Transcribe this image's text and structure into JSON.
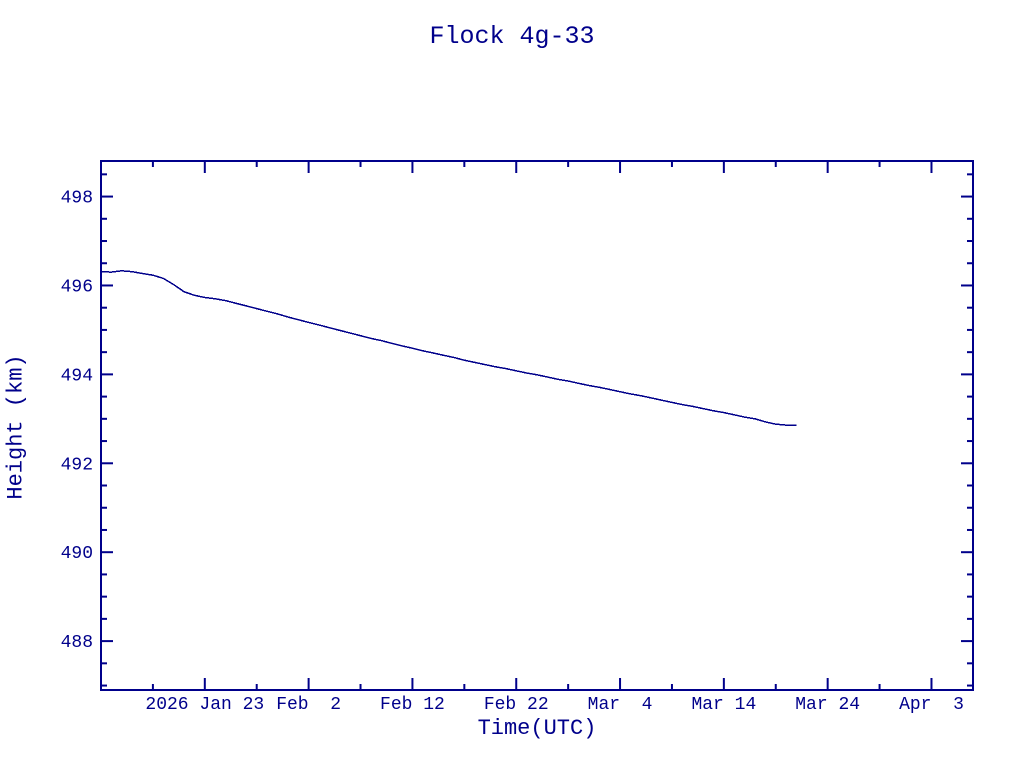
{
  "chart_data": {
    "type": "line",
    "title": "Flock 4g-33",
    "xlabel": "Time(UTC)",
    "ylabel": "Height (km)",
    "line_color": "#00008B",
    "background_color": "#FFFFFF",
    "grid": false,
    "legend_position": "none",
    "ylim": [
      486.9,
      498.8
    ],
    "xlim": [
      "2026-01-13",
      "2026-04-07"
    ],
    "y_major_ticks": [
      488,
      490,
      492,
      494,
      496,
      498
    ],
    "y_minor_ticks": [
      487,
      487.5,
      488.5,
      489,
      489.5,
      490.5,
      491,
      491.5,
      492.5,
      493,
      493.5,
      494.5,
      495,
      495.5,
      496.5,
      497,
      497.5,
      498.5
    ],
    "x_major_ticks": [
      {
        "label": "2026 Jan 23",
        "date": "2026-01-23"
      },
      {
        "label": "Feb  2",
        "date": "2026-02-02"
      },
      {
        "label": "Feb 12",
        "date": "2026-02-12"
      },
      {
        "label": "Feb 22",
        "date": "2026-02-22"
      },
      {
        "label": "Mar  4",
        "date": "2026-03-04"
      },
      {
        "label": "Mar 14",
        "date": "2026-03-14"
      },
      {
        "label": "Mar 24",
        "date": "2026-03-24"
      },
      {
        "label": "Apr  3",
        "date": "2026-04-03"
      }
    ],
    "x_minor_tick_dates": [
      "2026-01-18",
      "2026-01-28",
      "2026-02-07",
      "2026-02-17",
      "2026-02-27",
      "2026-03-09",
      "2026-03-19",
      "2026-03-29"
    ],
    "series": [
      {
        "name": "Flock 4g-33 height",
        "start_date": "2026-01-13",
        "step_days": 1,
        "heights": [
          496.31,
          496.3,
          496.33,
          496.31,
          496.27,
          496.23,
          496.16,
          496.02,
          495.86,
          495.78,
          495.73,
          495.7,
          495.66,
          495.6,
          495.54,
          495.48,
          495.42,
          495.36,
          495.29,
          495.23,
          495.17,
          495.11,
          495.05,
          494.99,
          494.93,
          494.87,
          494.81,
          494.76,
          494.7,
          494.64,
          494.59,
          494.53,
          494.48,
          494.43,
          494.38,
          494.32,
          494.27,
          494.22,
          494.17,
          494.13,
          494.08,
          494.03,
          493.99,
          493.94,
          493.89,
          493.85,
          493.8,
          493.75,
          493.71,
          493.66,
          493.61,
          493.56,
          493.52,
          493.47,
          493.42,
          493.37,
          493.32,
          493.28,
          493.23,
          493.18,
          493.14,
          493.09,
          493.04,
          493.0,
          492.93,
          492.88,
          492.86,
          492.85
        ]
      }
    ]
  }
}
